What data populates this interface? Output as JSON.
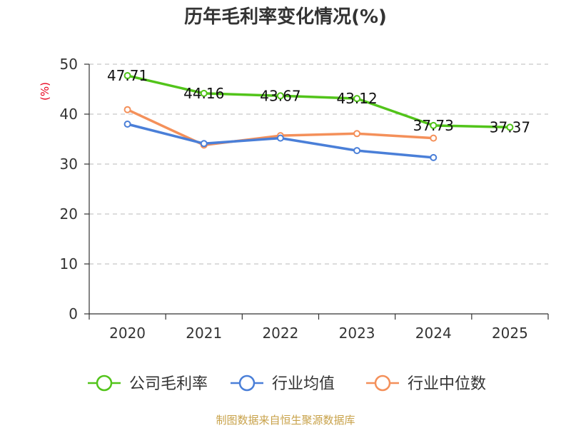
{
  "chart_data": {
    "type": "line",
    "title": "历年毛利率变化情况(%)",
    "ylabel": "(%)",
    "xlabel": "",
    "categories": [
      "2020",
      "2021",
      "2022",
      "2023",
      "2024",
      "2025"
    ],
    "ylim": [
      0,
      50
    ],
    "yticks": [
      0,
      10,
      20,
      30,
      40,
      50
    ],
    "grid": true,
    "legend_position": "bottom",
    "series": [
      {
        "name": "公司毛利率",
        "color": "#52c41a",
        "values": [
          47.71,
          44.16,
          43.67,
          43.12,
          37.73,
          37.37
        ],
        "labels": [
          "47.71",
          "44.16",
          "43.67",
          "43.12",
          "37.73",
          "37.37"
        ]
      },
      {
        "name": "行业均值",
        "color": "#4a7fd8",
        "values": [
          38.0,
          34.1,
          35.2,
          32.7,
          31.3,
          null
        ]
      },
      {
        "name": "行业中位数",
        "color": "#f4905a",
        "values": [
          40.9,
          33.8,
          35.7,
          36.1,
          35.2,
          null
        ]
      }
    ]
  },
  "source": "制图数据来自恒生聚源数据库"
}
